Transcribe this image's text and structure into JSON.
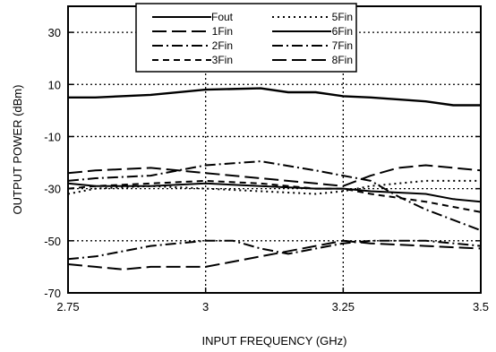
{
  "chart_data": {
    "type": "line",
    "xlabel": "INPUT FREQUENCY (GHz)",
    "ylabel": "OUTPUT POWER (dBm)",
    "xlim": [
      2.75,
      3.5
    ],
    "ylim": [
      -70,
      40
    ],
    "xticks": [
      2.75,
      3,
      3.25,
      3.5
    ],
    "xtick_labels": [
      "2.75",
      "3",
      "3.25",
      "3.5"
    ],
    "yticks": [
      -70,
      -50,
      -30,
      -10,
      10,
      30
    ],
    "ytick_labels": [
      "-70",
      "-50",
      "-30",
      "-10",
      "10",
      "30"
    ],
    "grid": "dotted at x = 3, 3.25 and y = -50, -30, -10, 10, 30",
    "legend_position": "top-center",
    "series": [
      {
        "name": "Fout",
        "style": "solid",
        "x": [
          2.75,
          2.8,
          2.9,
          3.0,
          3.1,
          3.15,
          3.2,
          3.25,
          3.3,
          3.4,
          3.45,
          3.5
        ],
        "y": [
          5,
          5,
          6,
          8,
          8.5,
          7,
          7,
          5.5,
          5,
          3.5,
          2,
          2
        ]
      },
      {
        "name": "1Fin",
        "style": "long-dash",
        "x": [
          2.75,
          2.8,
          2.9,
          3.0,
          3.1,
          3.2,
          3.25,
          3.3,
          3.35,
          3.4,
          3.45,
          3.5
        ],
        "y": [
          -24,
          -23,
          -22,
          -24,
          -26,
          -28,
          -29,
          -25,
          -22,
          -21,
          -22,
          -23
        ]
      },
      {
        "name": "2Fin",
        "style": "dash-dot",
        "x": [
          2.75,
          2.8,
          2.9,
          3.0,
          3.05,
          3.1,
          3.15,
          3.2,
          3.25,
          3.3,
          3.4,
          3.5
        ],
        "y": [
          -57,
          -56,
          -52,
          -50,
          -50,
          -53,
          -55,
          -53,
          -51,
          -50,
          -50,
          -52
        ]
      },
      {
        "name": "3Fin",
        "style": "dash",
        "x": [
          2.75,
          2.8,
          2.9,
          3.0,
          3.1,
          3.2,
          3.25,
          3.3,
          3.4,
          3.5
        ],
        "y": [
          -30,
          -29,
          -28,
          -27,
          -28,
          -30,
          -30,
          -32,
          -35,
          -39
        ]
      },
      {
        "name": "5Fin",
        "style": "dot",
        "x": [
          2.75,
          2.8,
          2.9,
          3.0,
          3.1,
          3.2,
          3.25,
          3.3,
          3.4,
          3.5
        ],
        "y": [
          -32,
          -30,
          -29,
          -30,
          -31,
          -32,
          -31,
          -29,
          -27,
          -27
        ]
      },
      {
        "name": "6Fin",
        "style": "solid",
        "x": [
          2.75,
          2.8,
          2.9,
          3.0,
          3.1,
          3.2,
          3.25,
          3.3,
          3.4,
          3.45,
          3.5
        ],
        "y": [
          -28,
          -29,
          -29,
          -28,
          -29,
          -30,
          -30,
          -31,
          -32,
          -34,
          -35
        ]
      },
      {
        "name": "7Fin",
        "style": "dash-dot",
        "x": [
          2.75,
          2.8,
          2.9,
          3.0,
          3.1,
          3.2,
          3.25,
          3.3,
          3.35,
          3.4,
          3.5
        ],
        "y": [
          -27,
          -26,
          -25,
          -21,
          -19.5,
          -23,
          -25,
          -27,
          -33,
          -38,
          -46
        ]
      },
      {
        "name": "8Fin",
        "style": "long-dash",
        "x": [
          2.75,
          2.8,
          2.85,
          2.9,
          3.0,
          3.1,
          3.2,
          3.25,
          3.3,
          3.4,
          3.5
        ],
        "y": [
          -59,
          -60,
          -61,
          -60,
          -60,
          -56,
          -52,
          -50,
          -51,
          -52,
          -53
        ]
      }
    ]
  }
}
